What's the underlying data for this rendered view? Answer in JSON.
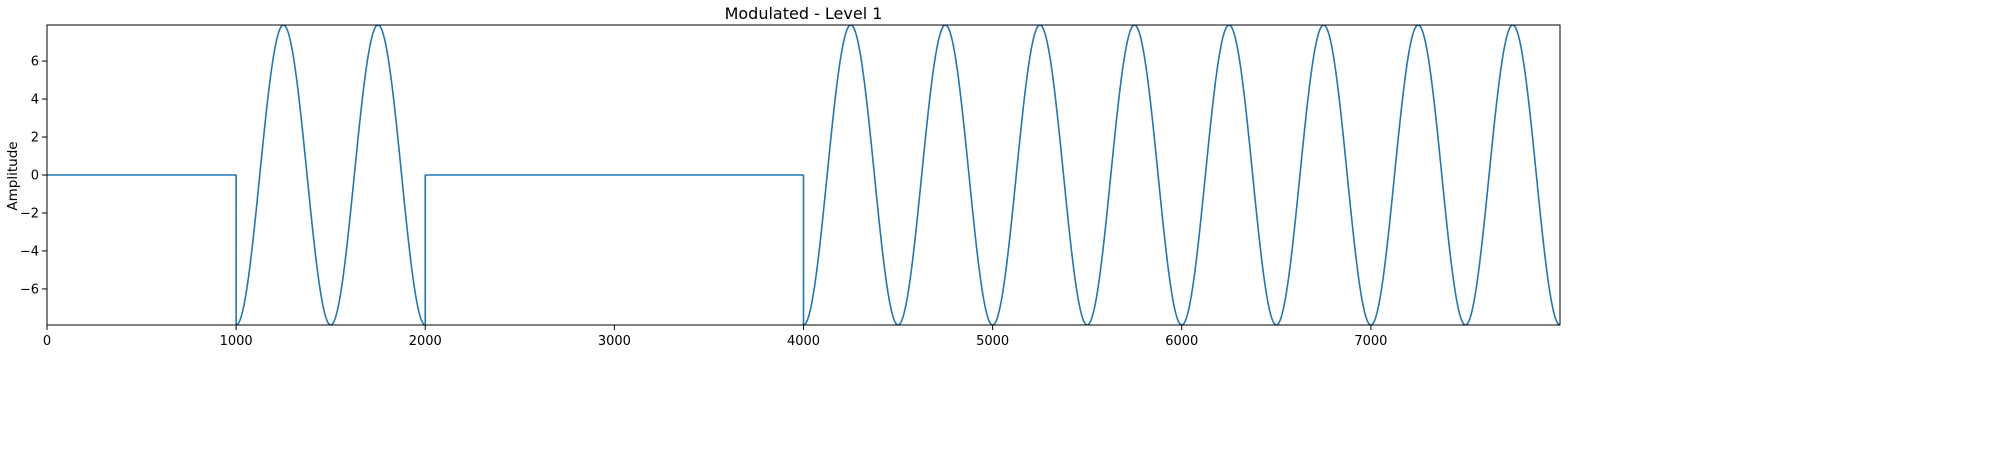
{
  "chart_data": {
    "type": "line",
    "title": "Modulated - Level 1",
    "xlabel": "",
    "ylabel": "Amplitude",
    "xlim": [
      0,
      8000
    ],
    "ylim": [
      -7.9,
      7.9
    ],
    "xticks": [
      0,
      1000,
      2000,
      3000,
      4000,
      5000,
      6000,
      7000
    ],
    "xtick_labels": [
      "0",
      "1000",
      "2000",
      "3000",
      "4000",
      "5000",
      "6000",
      "7000"
    ],
    "yticks": [
      -6,
      -4,
      -2,
      0,
      2,
      4,
      6
    ],
    "ytick_labels": [
      "−6",
      "−4",
      "−2",
      "0",
      "2",
      "4",
      "6"
    ],
    "grid": false,
    "legend": "none",
    "series": [
      {
        "color": "#1f77b4",
        "description_note": "",
        "amplitude": 7.9,
        "period": 500,
        "segments": [
          {
            "x_start": 0,
            "x_end": 1000,
            "kind": "zero"
          },
          {
            "x_start": 1000,
            "x_end": 2000,
            "kind": "carrier"
          },
          {
            "x_start": 2000,
            "x_end": 4000,
            "kind": "zero"
          },
          {
            "x_start": 4000,
            "x_end": 8000,
            "kind": "carrier"
          }
        ]
      }
    ]
  }
}
